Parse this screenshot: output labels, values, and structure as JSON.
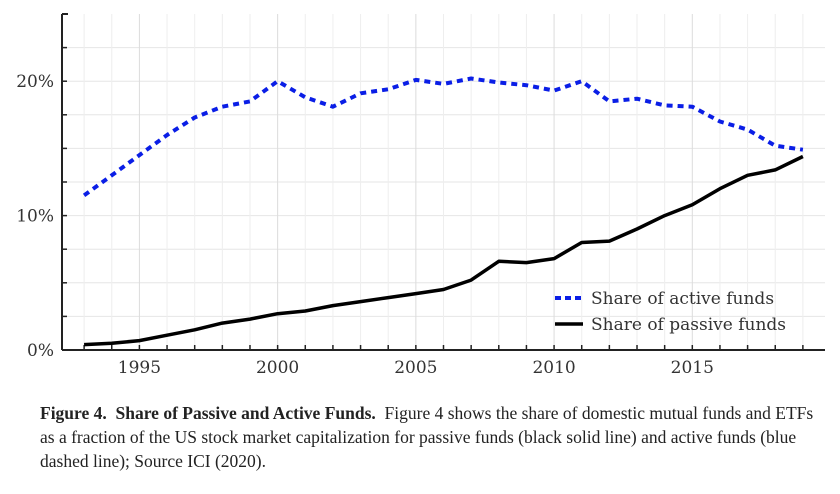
{
  "chart_data": {
    "type": "line",
    "title": "",
    "xlabel": "",
    "ylabel": "",
    "xlim": [
      1992.2,
      2019.8
    ],
    "ylim": [
      0,
      25
    ],
    "x_ticks": [
      1995,
      2000,
      2005,
      2010,
      2015
    ],
    "x_tick_labels": [
      "1995",
      "2000",
      "2005",
      "2010",
      "2015"
    ],
    "y_ticks": [
      0,
      10,
      20
    ],
    "y_tick_labels": [
      "0%",
      "10%",
      "20%"
    ],
    "y_minor_step": 2.5,
    "x_minor_step": 1,
    "grid": true,
    "legend_position": "bottom-right",
    "x": [
      1993,
      1994,
      1995,
      1996,
      1997,
      1998,
      1999,
      2000,
      2001,
      2002,
      2003,
      2004,
      2005,
      2006,
      2007,
      2008,
      2009,
      2010,
      2011,
      2012,
      2013,
      2014,
      2015,
      2016,
      2017,
      2018,
      2019
    ],
    "series": [
      {
        "name": "Share of active funds",
        "color": "#0a1ee6",
        "style": "dashed",
        "values": [
          11.5,
          13.0,
          14.5,
          16.0,
          17.3,
          18.1,
          18.5,
          20.0,
          18.8,
          18.1,
          19.1,
          19.4,
          20.1,
          19.8,
          20.2,
          19.9,
          19.7,
          19.3,
          20.0,
          18.5,
          18.7,
          18.2,
          18.1,
          17.0,
          16.4,
          15.2,
          14.9
        ]
      },
      {
        "name": "Share of passive funds",
        "color": "#000000",
        "style": "solid",
        "values": [
          0.4,
          0.5,
          0.7,
          1.1,
          1.5,
          2.0,
          2.3,
          2.7,
          2.9,
          3.3,
          3.6,
          3.9,
          4.2,
          4.5,
          5.2,
          6.6,
          6.5,
          6.8,
          8.0,
          8.1,
          9.0,
          10.0,
          10.8,
          12.0,
          13.0,
          13.4,
          14.4
        ]
      }
    ]
  },
  "caption": {
    "figure_label": "Figure 4.",
    "figure_title": "Share of Passive and Active Funds.",
    "text": "Figure 4 shows the share of domestic mutual funds and ETFs as a fraction of the US stock market capitalization for passive funds (black solid line) and active funds (blue dashed line); Source ICI (2020)."
  }
}
